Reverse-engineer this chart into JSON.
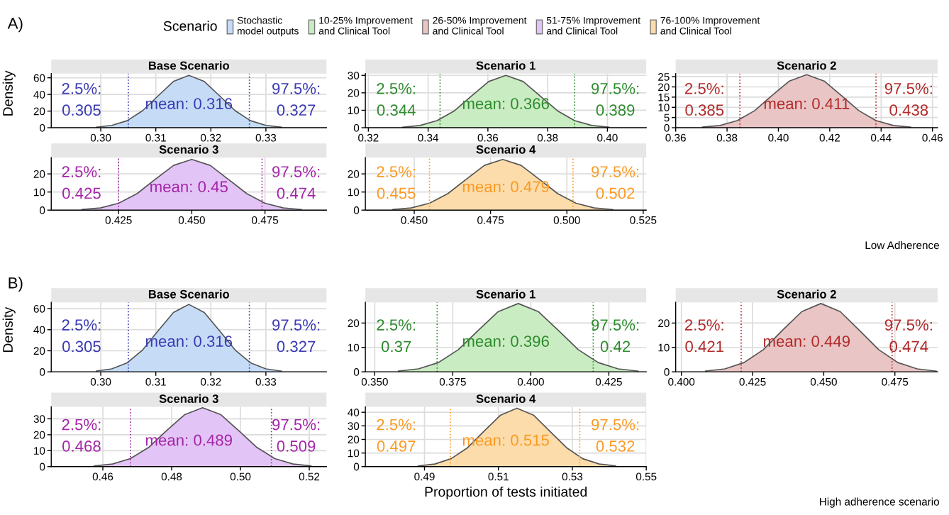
{
  "chart_data": [
    {
      "type": "area",
      "title": "Base Scenario",
      "subtitle": "A)",
      "ylabel": "Density",
      "legend": "top",
      "legend_title": "Scenario",
      "grid": true,
      "x": [
        0.2992,
        0.302,
        0.3048,
        0.3076,
        0.3104,
        0.3132,
        0.316,
        0.3188,
        0.3216,
        0.3244,
        0.3272,
        0.33,
        0.3328
      ],
      "series": [
        {
          "name": "Stochastic\nmodel outputs",
          "color": "#c6dcf6",
          "values": [
            0.7,
            2.8,
            8.5,
            20.5,
            38.2,
            55.6,
            63,
            55.6,
            38.2,
            20.5,
            8.5,
            2.8,
            0.7
          ]
        }
      ],
      "xlim": [
        0.291,
        0.341
      ],
      "ylim": [
        0,
        65
      ],
      "xticks": [
        {
          "value": 0.3,
          "label": "0.30"
        },
        0.31,
        0.32,
        0.33
      ],
      "yticks": [
        0,
        20,
        40,
        60
      ],
      "ref_lines": [
        {
          "axis": "x",
          "value": 0.305,
          "color": "#3b3bb5",
          "line_style": "dotted"
        },
        {
          "axis": "x",
          "value": 0.327,
          "color": "#3b3bb5",
          "line_style": "dotted"
        }
      ],
      "annotations": [
        "2.5%:\n0.305",
        "mean: 0.316",
        "97.5%:\n0.327"
      ]
    },
    {
      "type": "area",
      "title": "Scenario 1",
      "grid": true,
      "x": [
        0.3315,
        0.3373,
        0.343,
        0.3488,
        0.3545,
        0.3603,
        0.366,
        0.3718,
        0.3775,
        0.3833,
        0.389,
        0.3948,
        0.4005
      ],
      "series": [
        {
          "name": "10-25% Improvement\nand Clinical Tool",
          "color": "#c9ecc2",
          "values": [
            0.3,
            1.3,
            4.1,
            9.7,
            18.2,
            26.5,
            30,
            26.5,
            18.2,
            9.7,
            4.1,
            1.3,
            0.3
          ]
        }
      ],
      "xlim": [
        0.319,
        0.413
      ],
      "ylim": [
        0,
        31
      ],
      "xticks": [
        {
          "value": 0.32,
          "label": "0.32"
        },
        0.34,
        0.36,
        0.38,
        {
          "value": 0.4,
          "label": "0.40"
        }
      ],
      "yticks": [
        0,
        10,
        20,
        30
      ],
      "ref_lines": [
        {
          "axis": "x",
          "value": 0.344,
          "color": "#2e8b2e",
          "line_style": "dotted"
        },
        {
          "axis": "x",
          "value": 0.389,
          "color": "#2e8b2e",
          "line_style": "dotted"
        }
      ],
      "annotations": [
        "2.5%:\n0.344",
        "mean: 0.366",
        "97.5%:\n0.389"
      ]
    },
    {
      "type": "area",
      "title": "Scenario 2",
      "grid": true,
      "x": [
        0.3705,
        0.3773,
        0.384,
        0.3908,
        0.3975,
        0.4043,
        0.411,
        0.4178,
        0.4245,
        0.4313,
        0.438,
        0.4448,
        0.4515
      ],
      "series": [
        {
          "name": "26-50% Improvement\nand Clinical Tool",
          "color": "#e9c5c5",
          "values": [
            0.3,
            1.1,
            3.5,
            8.4,
            15.8,
            22.9,
            26,
            22.9,
            15.8,
            8.4,
            3.5,
            1.1,
            0.3
          ]
        }
      ],
      "xlim": [
        0.36,
        0.462
      ],
      "ylim": [
        0,
        26.5
      ],
      "xticks": [
        {
          "value": 0.36,
          "label": "0.36"
        },
        0.38,
        {
          "value": 0.4,
          "label": "0.40"
        },
        0.42,
        0.44,
        0.46
      ],
      "yticks": [
        0,
        5,
        10,
        15,
        20,
        25
      ],
      "ref_lines": [
        {
          "axis": "x",
          "value": 0.385,
          "color": "#b22a2a",
          "line_style": "dotted"
        },
        {
          "axis": "x",
          "value": 0.438,
          "color": "#b22a2a",
          "line_style": "dotted"
        }
      ],
      "annotations": [
        "2.5%:\n0.385",
        "mean: 0.411",
        "97.5%:\n0.438"
      ]
    },
    {
      "type": "area",
      "title": "Scenario 3",
      "grid": true,
      "x": [
        0.4125,
        0.4188,
        0.425,
        0.4313,
        0.4375,
        0.4438,
        0.45,
        0.4563,
        0.4625,
        0.4688,
        0.475,
        0.4813,
        0.4875
      ],
      "series": [
        {
          "name": "51-75% Improvement\nand Clinical Tool",
          "color": "#e3c4f6",
          "values": [
            0.3,
            1.2,
            3.8,
            9.1,
            17,
            24.7,
            28,
            24.7,
            17,
            9.1,
            3.8,
            1.2,
            0.3
          ]
        }
      ],
      "xlim": [
        0.402,
        0.496
      ],
      "ylim": [
        0,
        29
      ],
      "xticks": [
        0.425,
        {
          "value": 0.45,
          "label": "0.450"
        },
        0.475
      ],
      "yticks": [
        0,
        10,
        20
      ],
      "ref_lines": [
        {
          "axis": "x",
          "value": 0.425,
          "color": "#a326a8",
          "line_style": "dotted"
        },
        {
          "axis": "x",
          "value": 0.474,
          "color": "#a326a8",
          "line_style": "dotted"
        }
      ],
      "annotations": [
        "2.5%:\n0.425",
        "mean: 0.45",
        "97.5%:\n0.474"
      ]
    },
    {
      "type": "area",
      "title": "Scenario 4",
      "grid": true,
      "x": [
        0.443,
        0.449,
        0.455,
        0.461,
        0.467,
        0.473,
        0.479,
        0.485,
        0.491,
        0.497,
        0.503,
        0.509,
        0.515
      ],
      "series": [
        {
          "name": "76-100% Improvement\nand Clinical Tool",
          "color": "#fcdcab",
          "values": [
            0.3,
            1.2,
            3.8,
            9.1,
            17,
            24.7,
            28,
            24.7,
            17,
            9.1,
            3.8,
            1.2,
            0.3
          ]
        }
      ],
      "xlim": [
        0.434,
        0.526
      ],
      "ylim": [
        0,
        29
      ],
      "xticks": [
        {
          "value": 0.45,
          "label": "0.450"
        },
        0.475,
        {
          "value": 0.5,
          "label": "0.500"
        },
        0.525
      ],
      "yticks": [
        0,
        10,
        20
      ],
      "ref_lines": [
        {
          "axis": "x",
          "value": 0.455,
          "color": "#fb9a22",
          "line_style": "dotted"
        },
        {
          "axis": "x",
          "value": 0.502,
          "color": "#fb9a22",
          "line_style": "dotted"
        }
      ],
      "annotations": [
        "2.5%:\n0.455",
        "mean: 0.479",
        "97.5%:\n0.502",
        "Low Adherence"
      ]
    },
    {
      "type": "area",
      "title": "Base Scenario",
      "subtitle": "B)",
      "ylabel": "Density",
      "grid": true,
      "x": [
        0.2992,
        0.302,
        0.3048,
        0.3076,
        0.3104,
        0.3132,
        0.316,
        0.3188,
        0.3216,
        0.3244,
        0.3272,
        0.33,
        0.3328
      ],
      "series": [
        {
          "color": "#c6dcf6",
          "values": [
            0.7,
            2.8,
            8.6,
            20.8,
            38.8,
            56.4,
            64,
            56.4,
            38.8,
            20.8,
            8.6,
            2.8,
            0.7
          ]
        }
      ],
      "xlim": [
        0.291,
        0.341
      ],
      "ylim": [
        0,
        66
      ],
      "xticks": [
        {
          "value": 0.3,
          "label": "0.30"
        },
        0.31,
        0.32,
        0.33
      ],
      "yticks": [
        0,
        20,
        40,
        60
      ],
      "ref_lines": [
        {
          "axis": "x",
          "value": 0.305,
          "color": "#3b3bb5",
          "line_style": "dotted"
        },
        {
          "axis": "x",
          "value": 0.327,
          "color": "#3b3bb5",
          "line_style": "dotted"
        }
      ],
      "annotations": [
        "2.5%:\n0.305",
        "mean: 0.316",
        "97.5%:\n0.327"
      ]
    },
    {
      "type": "area",
      "title": "Scenario 1",
      "grid": true,
      "x": [
        0.3576,
        0.364,
        0.3704,
        0.3768,
        0.3832,
        0.3896,
        0.396,
        0.4024,
        0.4088,
        0.4152,
        0.4216,
        0.428,
        0.4344
      ],
      "series": [
        {
          "color": "#c9ecc2",
          "values": [
            0.3,
            1.2,
            3.8,
            9.1,
            17,
            24.7,
            28,
            24.7,
            17,
            9.1,
            3.8,
            1.2,
            0.3
          ]
        }
      ],
      "xlim": [
        0.347,
        0.437
      ],
      "ylim": [
        0,
        28.5
      ],
      "xticks": [
        {
          "value": 0.35,
          "label": "0.350"
        },
        0.375,
        {
          "value": 0.4,
          "label": "0.400"
        },
        0.425
      ],
      "yticks": [
        0,
        10,
        20
      ],
      "ref_lines": [
        {
          "axis": "x",
          "value": 0.37,
          "color": "#2e8b2e",
          "line_style": "dotted"
        },
        {
          "axis": "x",
          "value": 0.42,
          "color": "#2e8b2e",
          "line_style": "dotted"
        }
      ],
      "annotations": [
        "2.5%:\n0.37",
        "mean: 0.396",
        "97.5%:\n0.42"
      ]
    },
    {
      "type": "area",
      "title": "Scenario 2",
      "grid": true,
      "x": [
        0.4085,
        0.4153,
        0.422,
        0.4288,
        0.4355,
        0.4423,
        0.449,
        0.4558,
        0.4625,
        0.4693,
        0.476,
        0.4828,
        0.4895
      ],
      "series": [
        {
          "color": "#e9c5c5",
          "values": [
            0.3,
            1.2,
            3.8,
            9.1,
            17,
            24.7,
            28,
            24.7,
            17,
            9.1,
            3.8,
            1.2,
            0.3
          ]
        }
      ],
      "xlim": [
        0.398,
        0.49
      ],
      "ylim": [
        0,
        28.5
      ],
      "xticks": [
        {
          "value": 0.4,
          "label": "0.400"
        },
        0.425,
        {
          "value": 0.45,
          "label": "0.450"
        },
        0.475
      ],
      "yticks": [
        0,
        10,
        20
      ],
      "ref_lines": [
        {
          "axis": "x",
          "value": 0.421,
          "color": "#b22a2a",
          "line_style": "dotted"
        },
        {
          "axis": "x",
          "value": 0.474,
          "color": "#b22a2a",
          "line_style": "dotted"
        }
      ],
      "annotations": [
        "2.5%:\n0.421",
        "mean: 0.449",
        "97.5%:\n0.474"
      ]
    },
    {
      "type": "area",
      "title": "Scenario 3",
      "grid": true,
      "x": [
        0.4575,
        0.4628,
        0.468,
        0.4733,
        0.4785,
        0.4838,
        0.489,
        0.4943,
        0.4995,
        0.5048,
        0.51,
        0.5153,
        0.5205
      ],
      "series": [
        {
          "color": "#e3c4f6",
          "values": [
            0.4,
            1.6,
            5,
            12,
            22.5,
            32.6,
            37,
            32.6,
            22.5,
            12,
            5,
            1.6,
            0.4
          ]
        }
      ],
      "xlim": [
        0.445,
        0.525
      ],
      "ylim": [
        0,
        37.5
      ],
      "xticks": [
        0.46,
        0.48,
        {
          "value": 0.5,
          "label": "0.50"
        },
        0.52
      ],
      "yticks": [
        0,
        10,
        20,
        30
      ],
      "ref_lines": [
        {
          "axis": "x",
          "value": 0.468,
          "color": "#a326a8",
          "line_style": "dotted"
        },
        {
          "axis": "x",
          "value": 0.509,
          "color": "#a326a8",
          "line_style": "dotted"
        }
      ],
      "annotations": [
        "2.5%:\n0.468",
        "mean: 0.489",
        "97.5%:\n0.509"
      ]
    },
    {
      "type": "area",
      "title": "Scenario 4",
      "xlabel": "Proportion of tests initiated",
      "grid": true,
      "x": [
        0.4883,
        0.4928,
        0.4972,
        0.5017,
        0.5061,
        0.5106,
        0.515,
        0.5195,
        0.5239,
        0.5284,
        0.5328,
        0.5373,
        0.5417
      ],
      "series": [
        {
          "color": "#fcdcab",
          "values": [
            0.5,
            1.9,
            5.8,
            14,
            26.1,
            37.9,
            43,
            37.9,
            26.1,
            14,
            5.8,
            1.9,
            0.5
          ]
        }
      ],
      "xlim": [
        0.474,
        0.55
      ],
      "ylim": [
        0,
        44
      ],
      "xticks": [
        0.49,
        0.51,
        0.53,
        0.55
      ],
      "yticks": [
        0,
        10,
        20,
        30,
        40
      ],
      "ref_lines": [
        {
          "axis": "x",
          "value": 0.497,
          "color": "#fb9a22",
          "line_style": "dotted"
        },
        {
          "axis": "x",
          "value": 0.532,
          "color": "#fb9a22",
          "line_style": "dotted"
        }
      ],
      "annotations": [
        "2.5%:\n0.497",
        "mean: 0.515",
        "97.5%:\n0.532",
        "High adherence scenario"
      ]
    }
  ]
}
